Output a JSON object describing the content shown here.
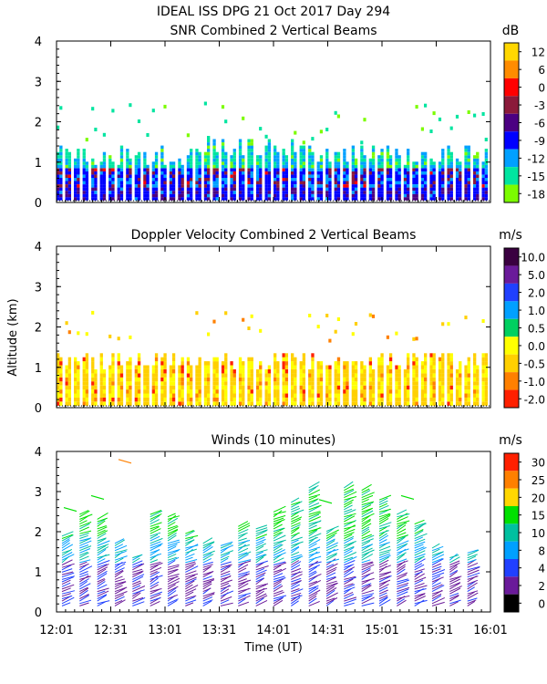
{
  "header": {
    "line1": "IDEAL ISS DPG  21 Oct 2017 Day 294"
  },
  "chart_data": [
    {
      "type": "heatmap",
      "title": "SNR Combined 2 Vertical Beams",
      "unit": "dB",
      "ylabel": "",
      "ylim": [
        0,
        4
      ],
      "yticks": [
        "0",
        "1",
        "2",
        "3",
        "4"
      ],
      "colorbar": {
        "labels": [
          "12",
          "6",
          "0",
          "-3",
          "-6",
          "-9",
          "-12",
          "-15",
          "-18"
        ],
        "colors": [
          "#ffd700",
          "#ff8c00",
          "#ff0000",
          "#8b1a3a",
          "#4b0082",
          "#0000ff",
          "#00a0ff",
          "#00e5a0",
          "#7cfc00"
        ]
      },
      "profile": {
        "heights_km": [
          0.15,
          0.35,
          0.6,
          0.9,
          1.2,
          1.5,
          2.0,
          2.5
        ],
        "levels_db": [
          -6,
          -8,
          -4,
          -10,
          -14,
          -16,
          -17,
          -18
        ]
      }
    },
    {
      "type": "heatmap",
      "title": "Doppler Velocity Combined 2 Vertical Beams",
      "unit": "m/s",
      "ylabel": "Altitude (km)",
      "ylim": [
        0,
        4
      ],
      "yticks": [
        "0",
        "1",
        "2",
        "3",
        "4"
      ],
      "colorbar": {
        "labels": [
          "10.0",
          "5.0",
          "2.0",
          "1.0",
          "0.5",
          "0.0",
          "-0.5",
          "-1.0",
          "-2.0"
        ],
        "colors": [
          "#3a0040",
          "#6a1a9a",
          "#2040ff",
          "#00a0ff",
          "#00d060",
          "#ffff00",
          "#ffd000",
          "#ff8000",
          "#ff2000"
        ]
      }
    },
    {
      "type": "scatter",
      "title": "Winds (10 minutes)",
      "unit": "m/s",
      "ylabel": "",
      "ylim": [
        0,
        4
      ],
      "yticks": [
        "0",
        "1",
        "2",
        "3",
        "4"
      ],
      "colorbar": {
        "labels": [
          "30",
          "25",
          "20",
          "15",
          "10",
          "8",
          "4",
          "2",
          "0"
        ],
        "colors": [
          "#ff2000",
          "#ff8000",
          "#ffd700",
          "#00e000",
          "#00c0a0",
          "#00a0ff",
          "#2040ff",
          "#6a1a9a",
          "#000000"
        ]
      }
    }
  ],
  "xaxis": {
    "label": "Time (UT)",
    "tick_labels": [
      "12:01",
      "12:31",
      "13:01",
      "13:31",
      "14:01",
      "14:31",
      "15:01",
      "15:31",
      "16:01"
    ]
  }
}
